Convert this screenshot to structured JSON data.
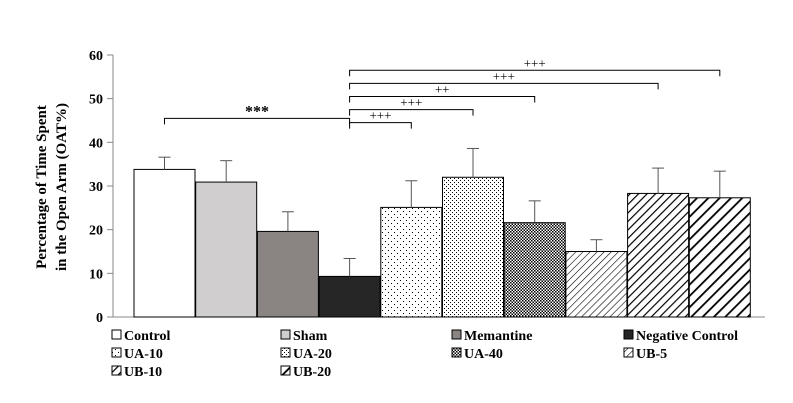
{
  "chart_data": {
    "type": "bar",
    "ylabel_line1": "Percentage of Time Spent",
    "ylabel_line2": "in the Open Arm (OAT%)",
    "ylim": [
      0,
      60
    ],
    "yticks": [
      "0",
      "10",
      "20",
      "30",
      "40",
      "50",
      "60"
    ],
    "grid": false,
    "legend_position": "bottom",
    "categories": [
      "Control",
      "Sham",
      "Memantine",
      "Negative Control",
      "UA-10",
      "UA-20",
      "UA-40",
      "UB-5",
      "UB-10",
      "UB-20"
    ],
    "values": [
      33.8,
      30.9,
      19.6,
      9.3,
      25.1,
      32.0,
      21.6,
      15.0,
      28.3,
      27.3
    ],
    "errors": [
      2.8,
      4.9,
      4.5,
      4.1,
      6.1,
      6.6,
      5.0,
      2.7,
      5.8,
      6.1
    ],
    "patterns": [
      "white",
      "light-gray",
      "dark-gray",
      "black",
      "sparse-dots",
      "fine-dots",
      "dense-dots",
      "diagonal-fine",
      "diagonal-thick",
      "diagonal-bold"
    ],
    "colors": {
      "light_gray": "#d0cece",
      "dark_gray": "#8a8583",
      "black": "#262626"
    },
    "annotations": [
      {
        "from": "Control",
        "to": "Negative Control",
        "label": "***",
        "y": 45.5
      },
      {
        "from": "Negative Control",
        "to": "UA-10",
        "label": "+++",
        "y": 44.5
      },
      {
        "from": "Negative Control",
        "to": "UA-20",
        "label": "+++",
        "y": 47.5
      },
      {
        "from": "Negative Control",
        "to": "UA-40",
        "label": "++",
        "y": 50.5
      },
      {
        "from": "Negative Control",
        "to": "UB-10",
        "label": "+++",
        "y": 53.5
      },
      {
        "from": "Negative Control",
        "to": "UB-20",
        "label": "+++",
        "y": 56.5
      }
    ]
  }
}
